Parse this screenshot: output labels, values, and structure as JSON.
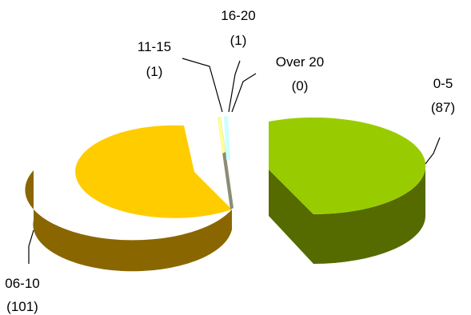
{
  "chart_data": {
    "type": "pie",
    "style": "3d-exploded",
    "slices": [
      {
        "label": "0-5",
        "value": 87,
        "value_label": "(87)",
        "color": "#99cc00",
        "side_color": "#556b00"
      },
      {
        "label": "06-10",
        "value": 101,
        "value_label": "(101)",
        "color": "#ffcc00",
        "side_color": "#8a6600"
      },
      {
        "label": "11-15",
        "value": 1,
        "value_label": "(1)",
        "color": "#ffff99",
        "side_color": "#8c8c73"
      },
      {
        "label": "16-20",
        "value": 1,
        "value_label": "(1)",
        "color": "#ccffff",
        "side_color": "#7aa0a0"
      },
      {
        "label": "Over 20",
        "value": 0,
        "value_label": "(0)",
        "color": "#99ccff",
        "side_color": "#5a7a99"
      }
    ]
  }
}
